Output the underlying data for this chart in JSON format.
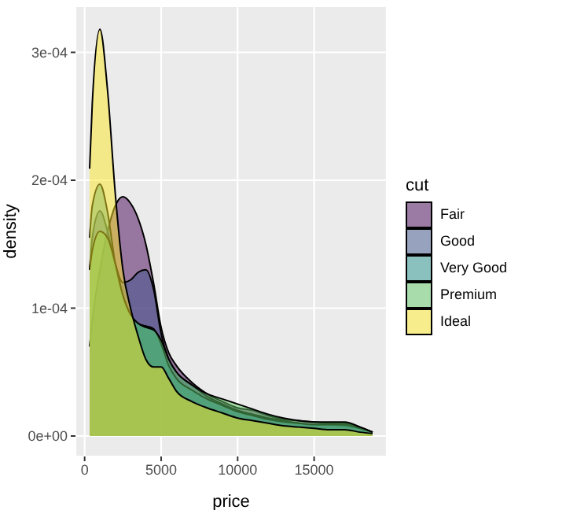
{
  "chart_data": {
    "type": "area",
    "xlabel": "price",
    "ylabel": "density",
    "legend_title": "cut",
    "legend": "right",
    "grid": true,
    "x": [
      326,
      500,
      1000,
      1500,
      2000,
      2500,
      3000,
      3500,
      4000,
      4500,
      5000,
      5500,
      6000,
      7000,
      8000,
      9000,
      10000,
      11000,
      12000,
      13000,
      14000,
      15000,
      16000,
      17000,
      18000,
      18823
    ],
    "series": [
      {
        "name": "Fair",
        "color": "#440154",
        "values": [
          7e-05,
          9e-05,
          0.00013,
          0.00016,
          0.00018,
          0.000187,
          0.000182,
          0.00017,
          0.00015,
          0.00012,
          8.5e-05,
          6.5e-05,
          5.5e-05,
          4.2e-05,
          3.3e-05,
          2.7e-05,
          2.2e-05,
          2e-05,
          1.6e-05,
          1.3e-05,
          1.2e-05,
          1.1e-05,
          1e-05,
          1e-05,
          7e-06,
          3e-06
        ]
      },
      {
        "name": "Good",
        "color": "#3b528b",
        "values": [
          0.00013,
          0.000155,
          0.000176,
          0.00016,
          0.000135,
          0.00012,
          0.000122,
          0.000128,
          0.00013,
          0.000115,
          8e-05,
          6e-05,
          5e-05,
          4e-05,
          3.1e-05,
          2.5e-05,
          2e-05,
          1.7e-05,
          1.4e-05,
          1.2e-05,
          1e-05,
          9e-06,
          9e-06,
          8e-06,
          6e-06,
          3e-06
        ]
      },
      {
        "name": "Very Good",
        "color": "#21908c",
        "values": [
          0.000155,
          0.00018,
          0.000197,
          0.000175,
          0.000135,
          0.00011,
          9.5e-05,
          8.8e-05,
          8.6e-05,
          8.4e-05,
          7.2e-05,
          5.5e-05,
          4.5e-05,
          3.6e-05,
          2.9e-05,
          2.4e-05,
          1.9e-05,
          1.6e-05,
          1.3e-05,
          1.1e-05,
          1e-05,
          9e-06,
          9e-06,
          9e-06,
          6e-06,
          3e-06
        ]
      },
      {
        "name": "Premium",
        "color": "#5dc863",
        "values": [
          0.00013,
          0.000145,
          0.00016,
          0.000155,
          0.000135,
          0.00011,
          9.5e-05,
          8.8e-05,
          8.5e-05,
          8.3e-05,
          7.5e-05,
          6e-05,
          5e-05,
          4e-05,
          3.3e-05,
          2.9e-05,
          2.5e-05,
          2.1e-05,
          1.7e-05,
          1.4e-05,
          1.2e-05,
          1.1e-05,
          1.1e-05,
          1.1e-05,
          7e-06,
          3e-06
        ]
      },
      {
        "name": "Ideal",
        "color": "#fde725",
        "values": [
          0.000209,
          0.00026,
          0.000318,
          0.00027,
          0.00019,
          0.00013,
          0.0001,
          7.8e-05,
          6e-05,
          5.4e-05,
          5.4e-05,
          4.5e-05,
          3.5e-05,
          2.7e-05,
          2.2e-05,
          1.8e-05,
          1.4e-05,
          1.2e-05,
          1e-05,
          8e-06,
          7e-06,
          6e-06,
          5e-06,
          5e-06,
          3e-06,
          2e-06
        ]
      }
    ],
    "xlim": [
      -599,
      19748
    ],
    "xticks": [
      0,
      5000,
      10000,
      15000
    ],
    "ylim": [
      -1.6e-05,
      0.000336
    ],
    "yticks": [
      {
        "value": 0,
        "label": "0e+00"
      },
      {
        "value": 0.0001,
        "label": "1e-04"
      },
      {
        "value": 0.0002,
        "label": "2e-04"
      },
      {
        "value": 0.0003,
        "label": "3e-04"
      }
    ]
  }
}
